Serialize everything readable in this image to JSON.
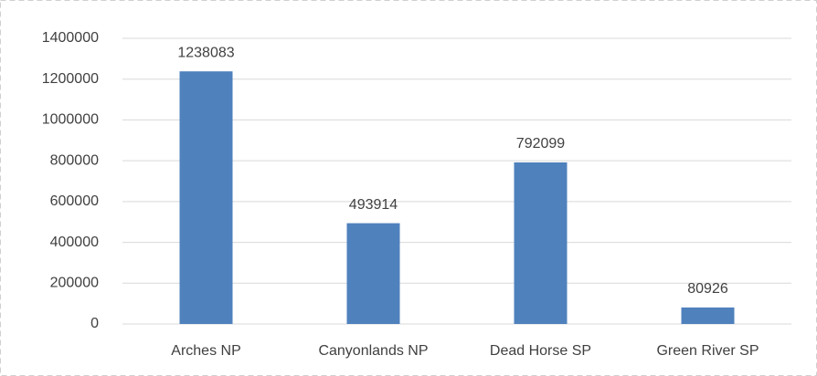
{
  "chart_data": {
    "type": "bar",
    "categories": [
      "Arches NP",
      "Canyonlands NP",
      "Dead Horse SP",
      "Green River SP"
    ],
    "values": [
      1238083,
      493914,
      792099,
      80926
    ],
    "color": "#4f81bd",
    "ylim": [
      0,
      1400000
    ],
    "yticks": [
      0,
      200000,
      400000,
      600000,
      800000,
      1000000,
      1200000,
      1400000
    ],
    "grid": true
  }
}
